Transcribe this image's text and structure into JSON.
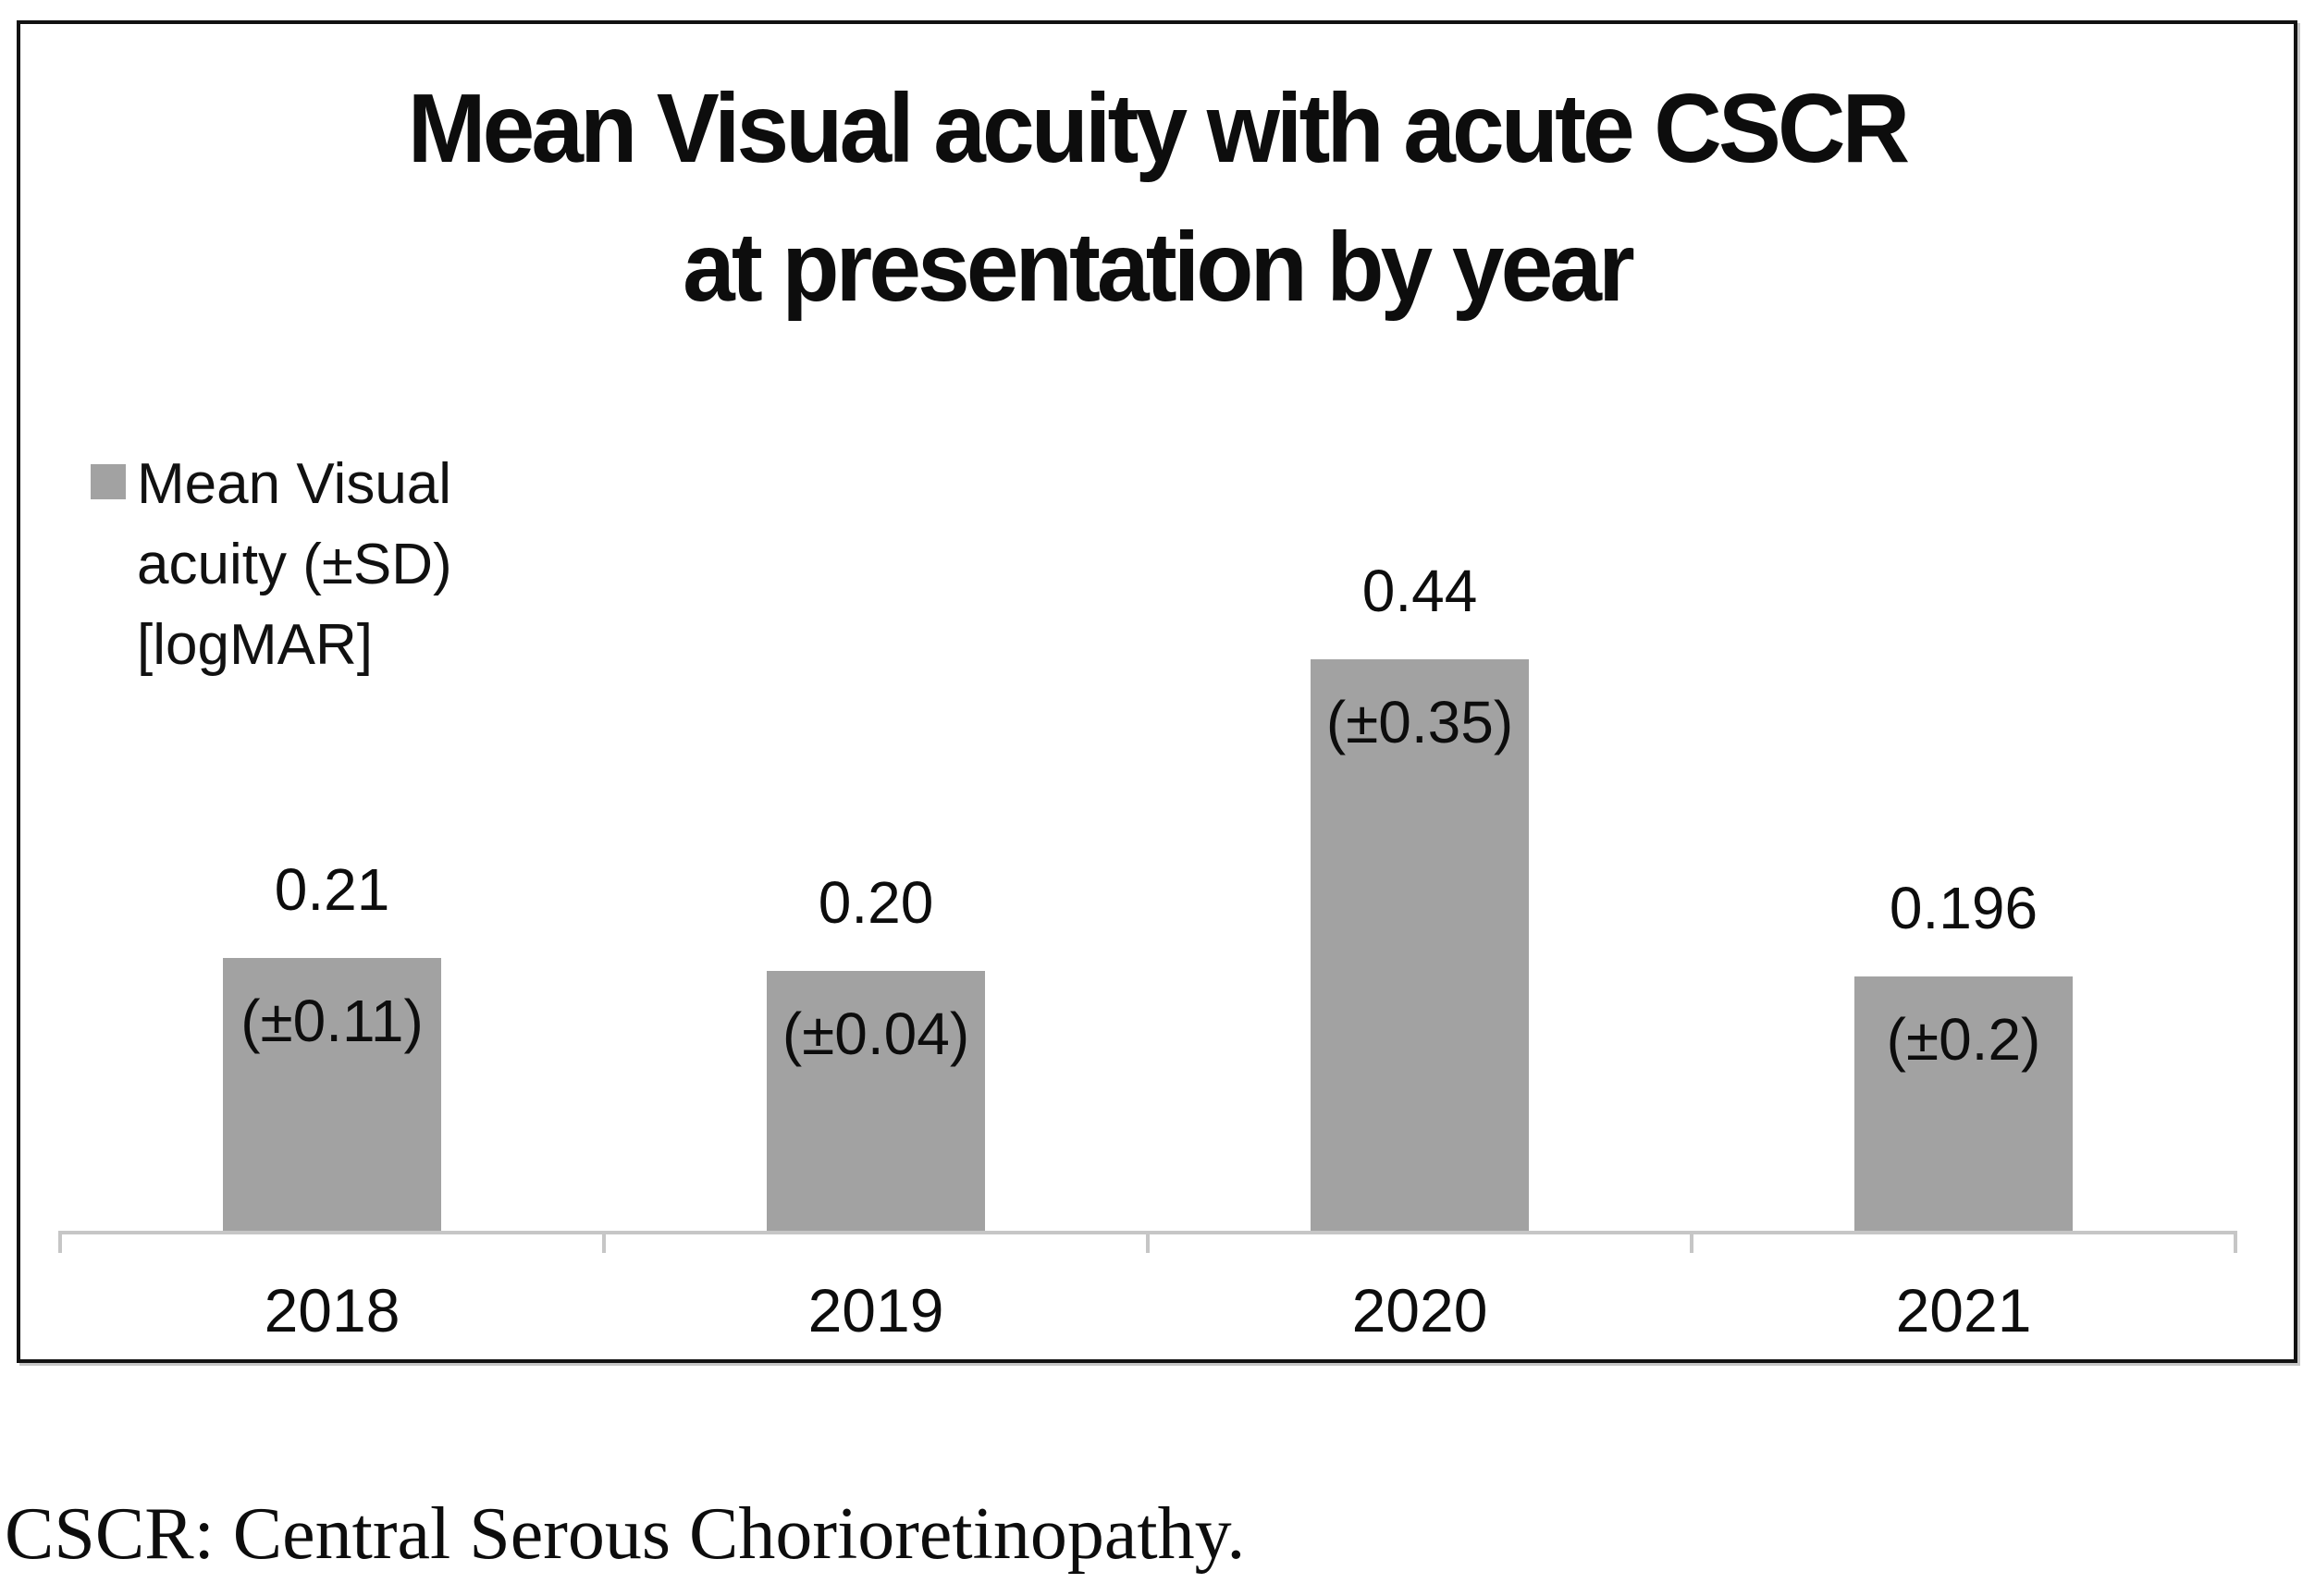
{
  "figure": {
    "title_line1": "Mean Visual acuity with acute CSCR",
    "title_line2": "at presentation by year",
    "legend": {
      "label": "Mean Visual acuity (±SD) [logMAR]",
      "lines": [
        "Mean Visual",
        "acuity (±SD)",
        "[logMAR]"
      ],
      "marker_color": "#a2a2a2"
    },
    "footnote": "CSCR: Central Serous Chorioretinopathy."
  },
  "chart_data": {
    "type": "bar",
    "title": "Mean Visual acuity with acute CSCR at presentation by year",
    "categories": [
      "2018",
      "2019",
      "2020",
      "2021"
    ],
    "series": [
      {
        "name": "Mean Visual acuity (±SD) [logMAR]",
        "values": [
          0.21,
          0.2,
          0.44,
          0.196
        ],
        "sd": [
          0.11,
          0.04,
          0.35,
          0.2
        ]
      }
    ],
    "value_labels": [
      "0.21",
      "0.20",
      "0.44",
      "0.196"
    ],
    "sd_labels": [
      "(±0.11)",
      "(±0.04)",
      "(±0.35)",
      "(±0.2)"
    ],
    "xlabel": "",
    "ylabel": "",
    "ylim": [
      0,
      0.55
    ],
    "grid": false,
    "legend_position": "top-left",
    "bar_color": "#a2a2a2",
    "axis_color": "#c6c6c6"
  }
}
